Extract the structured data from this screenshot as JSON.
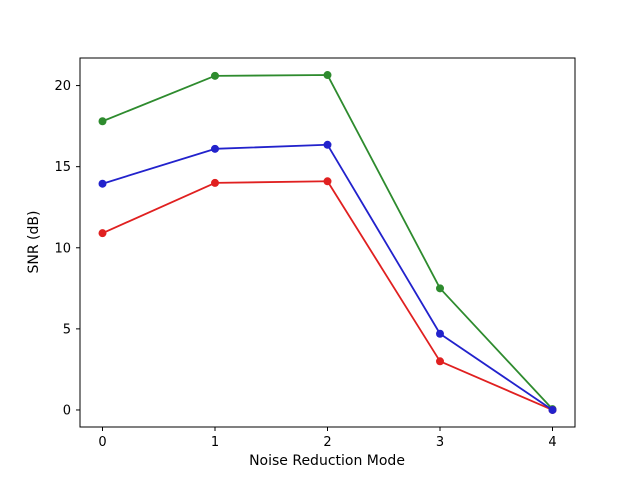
{
  "chart_data": {
    "type": "line",
    "title": "",
    "xlabel": "Noise Reduction Mode",
    "ylabel": "SNR (dB)",
    "x": [
      0,
      1,
      2,
      3,
      4
    ],
    "series": [
      {
        "name": "green-series",
        "color": "#2e8b2e",
        "values": [
          17.8,
          20.6,
          20.65,
          7.5,
          0.05
        ]
      },
      {
        "name": "red-series",
        "color": "#e02020",
        "values": [
          10.9,
          14.0,
          14.1,
          3.0,
          0.0
        ]
      },
      {
        "name": "blue-series",
        "color": "#2222cc",
        "values": [
          13.95,
          16.1,
          16.35,
          4.7,
          0.0
        ]
      }
    ],
    "xticks": [
      0,
      1,
      2,
      3,
      4
    ],
    "yticks": [
      0,
      5,
      10,
      15,
      20
    ],
    "xlim": [
      -0.2,
      4.2
    ],
    "ylim": [
      -1.05,
      21.7
    ],
    "grid": false,
    "legend": null,
    "line_width": 1.8,
    "marker_radius": 4
  }
}
